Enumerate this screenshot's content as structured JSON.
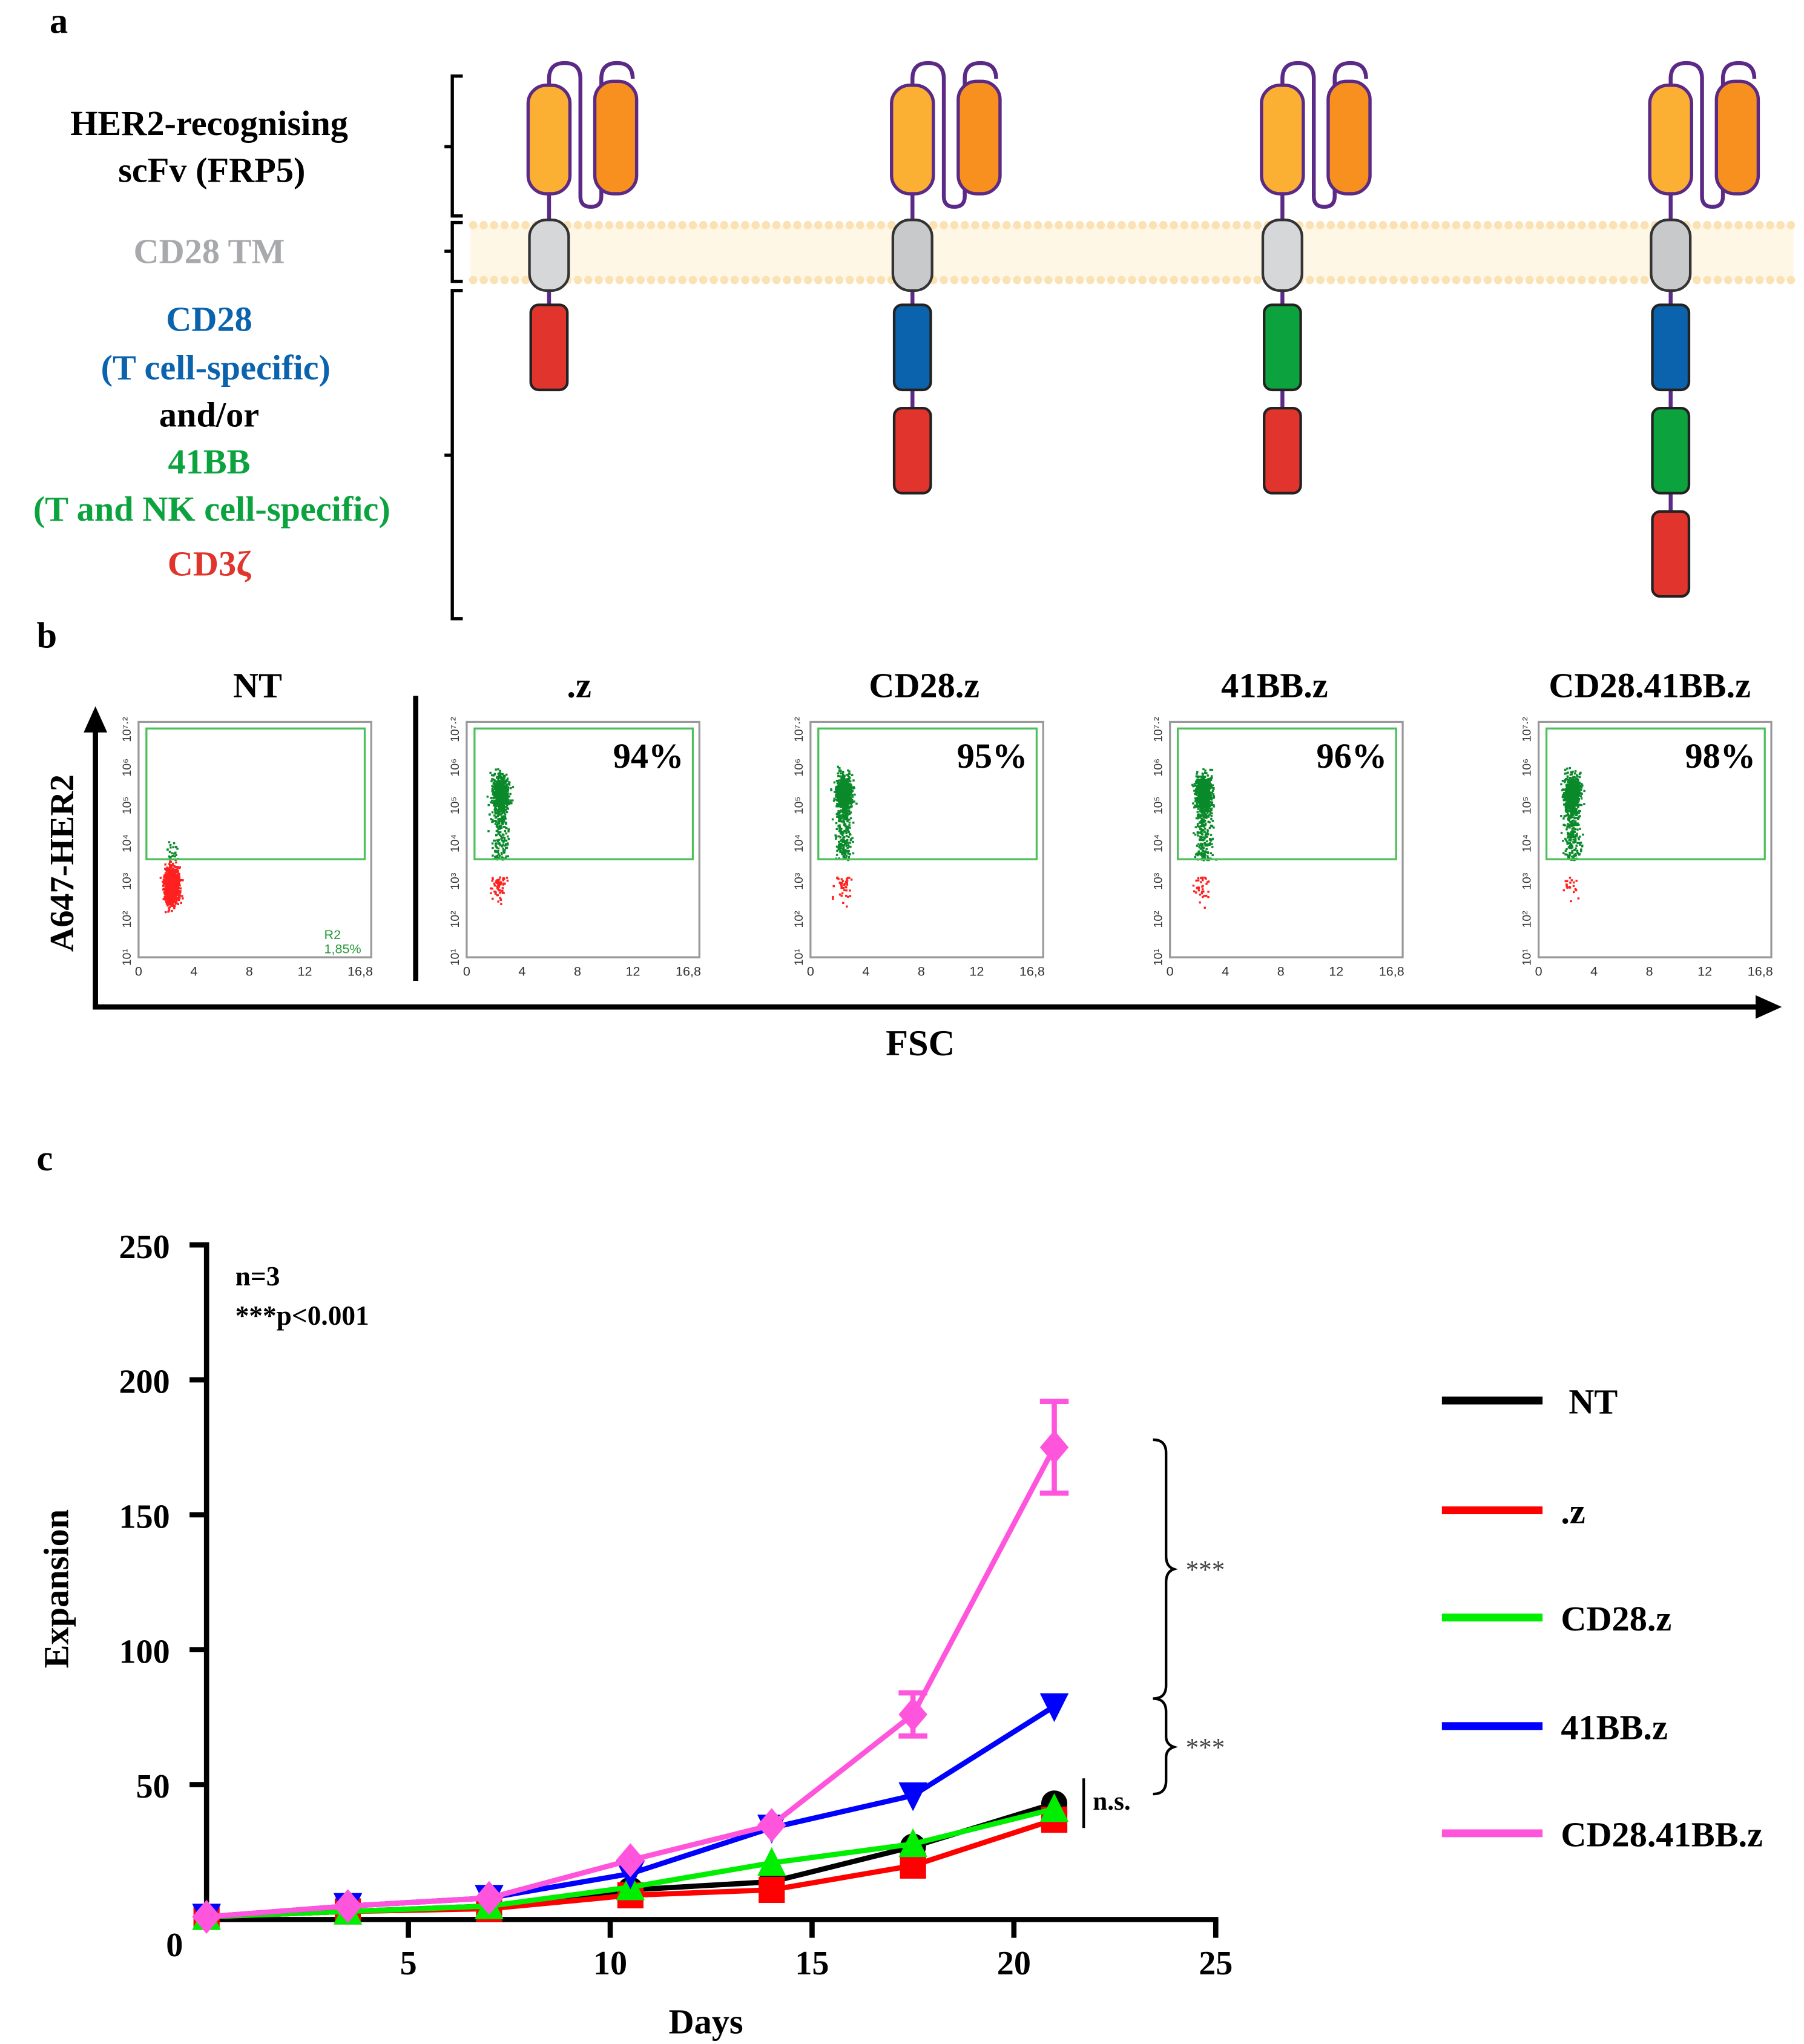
{
  "panel_a": {
    "letter": "a",
    "labels": {
      "scfv_line1": "HER2-recognising",
      "scfv_line2": "scFv (FRP5)",
      "tm": "CD28 TM",
      "cd28_line1": "CD28",
      "cd28_line2": "(T cell-specific)",
      "andor": "and/or",
      "bb_line1": "41BB",
      "bb_line2": "(T and NK cell-specific)",
      "cd3z": "CD3ζ"
    },
    "constructs": [
      {
        "domains": [
          "cd3z"
        ]
      },
      {
        "domains": [
          "cd28",
          "cd3z"
        ]
      },
      {
        "domains": [
          "41bb",
          "cd3z"
        ]
      },
      {
        "domains": [
          "cd28",
          "41bb",
          "cd3z"
        ]
      }
    ],
    "colors": {
      "cd28": "#0b63ad",
      "41bb": "#0ca33f",
      "cd3z": "#e0342c",
      "tm": "#a7a9ac",
      "scfv1": "#fbb034",
      "scfv2": "#f7901e",
      "linker": "#5b2a86",
      "membrane": "#fbe2b4"
    }
  },
  "panel_b": {
    "letter": "b",
    "y_axis_label": "A647-HER2",
    "x_axis_label": "FSC",
    "x_ticks": [
      "0",
      "4",
      "8",
      "12",
      "16,8"
    ],
    "y_ticks": [
      "10¹",
      "10²",
      "10³",
      "10⁴",
      "10⁵",
      "10⁶",
      "10⁷·²"
    ],
    "plots": [
      {
        "title": "NT",
        "gate_label": "R2",
        "gate_pct": "1,85%",
        "positive_fraction": 0.0185
      },
      {
        "title": ".z",
        "percent": "94%",
        "positive_fraction": 0.94
      },
      {
        "title": "CD28.z",
        "percent": "95%",
        "positive_fraction": 0.95
      },
      {
        "title": "41BB.z",
        "percent": "96%",
        "positive_fraction": 0.96
      },
      {
        "title": "CD28.41BB.z",
        "percent": "98%",
        "positive_fraction": 0.98
      }
    ]
  },
  "panel_c": {
    "letter": "c",
    "annotation_n": "n=3",
    "annotation_p": "***p<0.001",
    "sig1": "***",
    "sig2": "***",
    "ns": "n.s."
  },
  "chart_data": {
    "type": "line",
    "title": "",
    "xlabel": "Days",
    "ylabel": "Expansion",
    "xlim": [
      0,
      25
    ],
    "ylim": [
      0,
      250
    ],
    "x_ticks": [
      "5",
      "10",
      "15",
      "20",
      "25"
    ],
    "y_ticks": [
      "0",
      "50",
      "100",
      "150",
      "200",
      "250"
    ],
    "legend_placement": "right",
    "x": [
      0,
      3.5,
      7,
      10.5,
      14,
      17.5,
      21
    ],
    "series": [
      {
        "name": "NT",
        "color": "#000000",
        "marker": "circle",
        "values": [
          1,
          3,
          5,
          11,
          14,
          27,
          43
        ]
      },
      {
        "name": ".z",
        "color": "#ff0000",
        "marker": "square",
        "values": [
          1,
          3,
          4,
          9,
          11,
          20,
          37
        ]
      },
      {
        "name": "CD28.z",
        "color": "#00ee00",
        "marker": "triangle-up",
        "values": [
          1,
          3,
          5,
          12,
          21,
          28,
          41
        ]
      },
      {
        "name": "41BB.z",
        "color": "#0000ff",
        "marker": "triangle-down",
        "values": [
          1,
          5,
          8,
          17,
          34,
          46,
          79
        ]
      },
      {
        "name": "CD28.41BB.z",
        "color": "#ff55dd",
        "marker": "diamond",
        "values": [
          1,
          5,
          8,
          22,
          35,
          76,
          175
        ],
        "errors": [
          0,
          0,
          0,
          0,
          0,
          8,
          17
        ]
      }
    ]
  }
}
